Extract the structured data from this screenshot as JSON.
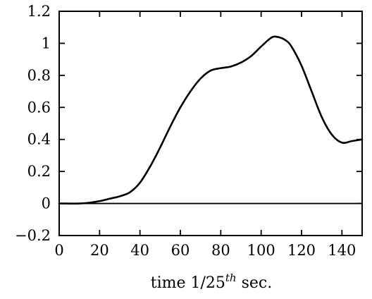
{
  "chart_data": {
    "type": "line",
    "title": "",
    "xlabel": "time 1/25",
    "xlabel_superscript": "th",
    "xlabel_suffix": " sec.",
    "ylabel": "",
    "xlim": [
      0,
      150
    ],
    "ylim": [
      -0.2,
      1.2
    ],
    "x_ticks": [
      0,
      20,
      40,
      60,
      80,
      100,
      120,
      140
    ],
    "x_tick_labels": [
      "0",
      "20",
      "40",
      "60",
      "80",
      "100",
      "120",
      "140"
    ],
    "y_ticks": [
      1.2,
      1,
      0.8,
      0.6,
      0.4,
      0.2,
      0,
      -0.2
    ],
    "y_tick_labels": [
      "1.2",
      "1",
      "0.8",
      "0.6",
      "0.4",
      "0.2",
      "0",
      "−0.2"
    ],
    "grid": false,
    "reference_line_y": 0,
    "series": [
      {
        "x": [
          0,
          10,
          15,
          20,
          25,
          30,
          35,
          40,
          45,
          50,
          55,
          60,
          65,
          70,
          75,
          80,
          85,
          90,
          95,
          100,
          105,
          108,
          112,
          115,
          120,
          125,
          130,
          135,
          140,
          145,
          150
        ],
        "y": [
          0,
          0,
          0.005,
          0.015,
          0.03,
          0.045,
          0.07,
          0.13,
          0.23,
          0.35,
          0.48,
          0.6,
          0.7,
          0.78,
          0.83,
          0.845,
          0.855,
          0.88,
          0.92,
          0.98,
          1.035,
          1.04,
          1.02,
          0.98,
          0.86,
          0.7,
          0.54,
          0.43,
          0.38,
          0.39,
          0.4
        ]
      }
    ]
  }
}
